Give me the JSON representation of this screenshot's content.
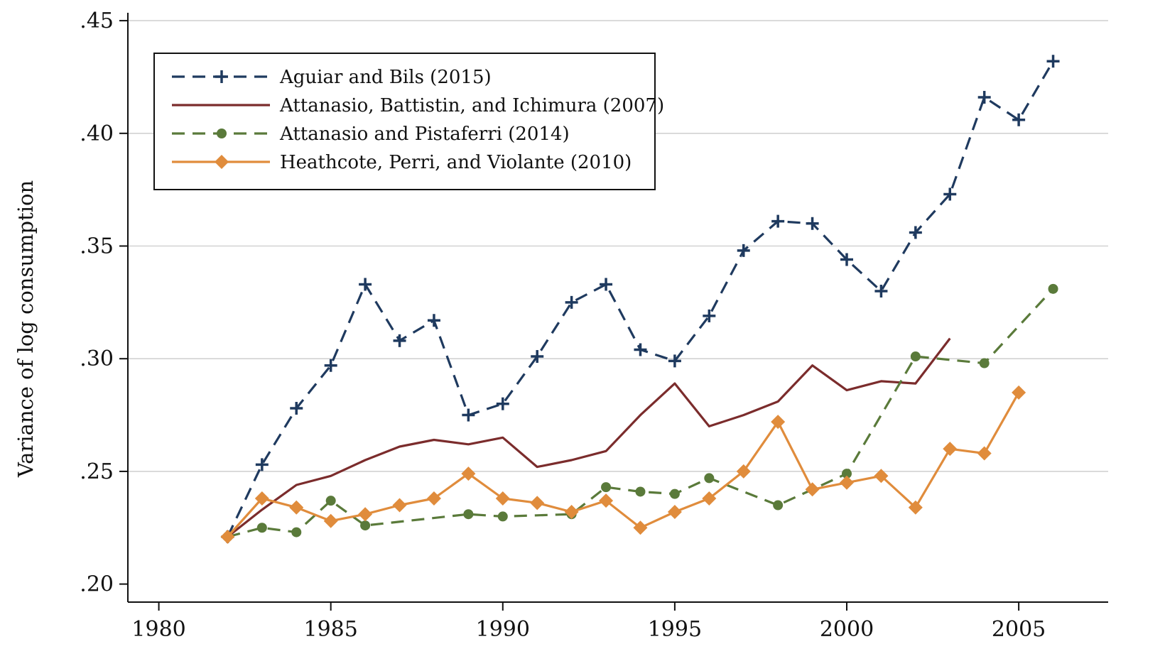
{
  "chart_data": {
    "type": "line",
    "title": "",
    "xlabel": "",
    "ylabel": "Variance of log consumption",
    "xlim": [
      1979.1,
      2007.6
    ],
    "ylim": [
      0.192,
      0.4535
    ],
    "xticks": [
      1980,
      1985,
      1990,
      1995,
      2000,
      2005
    ],
    "xtick_labels": [
      "1980",
      "1985",
      "1990",
      "1995",
      "2000",
      "2005"
    ],
    "yticks": [
      0.2,
      0.25,
      0.3,
      0.35,
      0.4,
      0.45
    ],
    "ytick_labels": [
      ".20",
      ".25",
      ".30",
      ".35",
      ".40",
      ".45"
    ],
    "grid": "horizontal",
    "legend_position": "top-left",
    "series": [
      {
        "name": "Aguiar and Bils (2015)",
        "color": "#1f3a5f",
        "line_style": "dashed",
        "marker": "plus",
        "points": [
          [
            1982,
            0.221
          ],
          [
            1983,
            0.253
          ],
          [
            1984,
            0.278
          ],
          [
            1985,
            0.297
          ],
          [
            1986,
            0.333
          ],
          [
            1987,
            0.308
          ],
          [
            1988,
            0.317
          ],
          [
            1989,
            0.275
          ],
          [
            1990,
            0.28
          ],
          [
            1991,
            0.301
          ],
          [
            1992,
            0.325
          ],
          [
            1993,
            0.333
          ],
          [
            1994,
            0.304
          ],
          [
            1995,
            0.299
          ],
          [
            1996,
            0.319
          ],
          [
            1997,
            0.348
          ],
          [
            1998,
            0.361
          ],
          [
            1999,
            0.36
          ],
          [
            2000,
            0.344
          ],
          [
            2001,
            0.33
          ],
          [
            2002,
            0.356
          ],
          [
            2003,
            0.373
          ],
          [
            2004,
            0.416
          ],
          [
            2005,
            0.406
          ],
          [
            2006,
            0.432
          ]
        ]
      },
      {
        "name": "Attanasio, Battistin, and Ichimura (2007)",
        "color": "#7b2c2c",
        "line_style": "solid",
        "marker": "none",
        "points": [
          [
            1982,
            0.221
          ],
          [
            1983,
            0.233
          ],
          [
            1984,
            0.244
          ],
          [
            1985,
            0.248
          ],
          [
            1986,
            0.255
          ],
          [
            1987,
            0.261
          ],
          [
            1988,
            0.264
          ],
          [
            1989,
            0.262
          ],
          [
            1990,
            0.265
          ],
          [
            1991,
            0.252
          ],
          [
            1992,
            0.255
          ],
          [
            1993,
            0.259
          ],
          [
            1994,
            0.275
          ],
          [
            1995,
            0.289
          ],
          [
            1996,
            0.27
          ],
          [
            1997,
            0.275
          ],
          [
            1998,
            0.281
          ],
          [
            1999,
            0.297
          ],
          [
            2000,
            0.286
          ],
          [
            2001,
            0.29
          ],
          [
            2002,
            0.289
          ],
          [
            2003,
            0.309
          ]
        ]
      },
      {
        "name": "Attanasio and Pistaferri (2014)",
        "color": "#5a7a3a",
        "line_style": "dashed",
        "marker": "circle",
        "points": [
          [
            1982,
            0.221
          ],
          [
            1983,
            0.225
          ],
          [
            1984,
            0.223
          ],
          [
            1985,
            0.237
          ],
          [
            1986,
            0.226
          ],
          [
            1989,
            0.231
          ],
          [
            1990,
            0.23
          ],
          [
            1992,
            0.231
          ],
          [
            1993,
            0.243
          ],
          [
            1994,
            0.241
          ],
          [
            1995,
            0.24
          ],
          [
            1996,
            0.247
          ],
          [
            1998,
            0.235
          ],
          [
            2000,
            0.249
          ],
          [
            2002,
            0.301
          ],
          [
            2004,
            0.298
          ],
          [
            2006,
            0.331
          ]
        ]
      },
      {
        "name": "Heathcote, Perri, and Violante (2010)",
        "color": "#e08c3c",
        "line_style": "solid",
        "marker": "diamond",
        "points": [
          [
            1982,
            0.221
          ],
          [
            1983,
            0.238
          ],
          [
            1984,
            0.234
          ],
          [
            1985,
            0.228
          ],
          [
            1986,
            0.231
          ],
          [
            1987,
            0.235
          ],
          [
            1988,
            0.238
          ],
          [
            1989,
            0.249
          ],
          [
            1990,
            0.238
          ],
          [
            1991,
            0.236
          ],
          [
            1992,
            0.232
          ],
          [
            1993,
            0.237
          ],
          [
            1994,
            0.225
          ],
          [
            1995,
            0.232
          ],
          [
            1996,
            0.238
          ],
          [
            1997,
            0.25
          ],
          [
            1998,
            0.272
          ],
          [
            1999,
            0.242
          ],
          [
            2000,
            0.245
          ],
          [
            2001,
            0.248
          ],
          [
            2002,
            0.234
          ],
          [
            2003,
            0.26
          ],
          [
            2004,
            0.258
          ],
          [
            2005,
            0.285
          ]
        ]
      }
    ]
  }
}
